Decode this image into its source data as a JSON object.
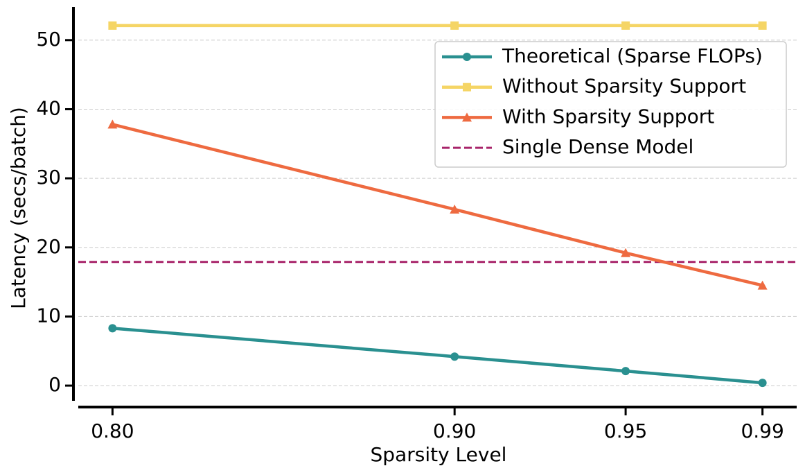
{
  "chart_data": {
    "type": "line",
    "xlabel": "Sparsity Level",
    "ylabel": "Latency (secs/batch)",
    "x": [
      0.8,
      0.9,
      0.95,
      0.99
    ],
    "xlim": [
      0.79,
      1.0
    ],
    "xticks": [
      {
        "value": 0.8,
        "label": "0.80"
      },
      {
        "value": 0.9,
        "label": "0.90"
      },
      {
        "value": 0.95,
        "label": "0.95"
      },
      {
        "value": 0.99,
        "label": "0.99"
      }
    ],
    "ylim": [
      -2.2,
      54.8
    ],
    "yticks": [
      0,
      10,
      20,
      30,
      40,
      50
    ],
    "grid": true,
    "legend": "upper right",
    "series": [
      {
        "name": "Theoretical (Sparse FLOPs)",
        "color": "#2a9090",
        "marker": "circle",
        "values": [
          8.3,
          4.2,
          2.1,
          0.4
        ]
      },
      {
        "name": "Without Sparsity Support",
        "color": "#f5d565",
        "marker": "square",
        "values": [
          52.1,
          52.1,
          52.1,
          52.1
        ]
      },
      {
        "name": "With Sparsity Support",
        "color": "#ee6a40",
        "marker": "triangle",
        "values": [
          37.8,
          25.5,
          19.2,
          14.5
        ]
      }
    ],
    "hlines": [
      {
        "name": "Single Dense Model",
        "color": "#a8246a",
        "linestyle": "dashed",
        "value": 17.9
      }
    ]
  }
}
